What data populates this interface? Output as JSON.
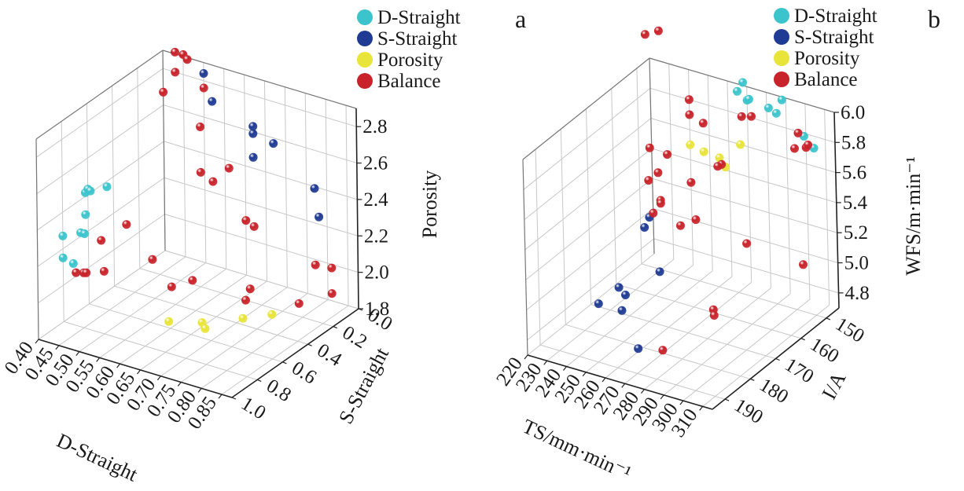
{
  "chart_data": [
    {
      "type": "scatter",
      "panel_label": "a",
      "legend": [
        "D-Straight",
        "S-Straight",
        "Porosity",
        "Balance"
      ],
      "legend_placement": "top-right",
      "axes": {
        "x": {
          "label": "D-Straight",
          "ticks": [
            "0.40",
            "0.45",
            "0.50",
            "0.55",
            "0.60",
            "0.65",
            "0.70",
            "0.75",
            "0.80",
            "0.85"
          ],
          "range": [
            0.4,
            0.875
          ]
        },
        "y": {
          "label": "S-Straight",
          "ticks": [
            "0.0",
            "0.2",
            "0.4",
            "0.6",
            "0.8",
            "1.0"
          ],
          "range": [
            0.0,
            1.0
          ]
        },
        "z": {
          "label": "Porosity",
          "ticks": [
            "1.8",
            "2.0",
            "2.2",
            "2.4",
            "2.6",
            "2.8"
          ],
          "range": [
            1.8,
            2.9
          ]
        }
      },
      "grid": true,
      "series": [
        {
          "name": "D-Straight",
          "color": "#3cc4cc",
          "points": [
            [
              0.4,
              0.8,
              2.27
            ],
            [
              0.4,
              0.8,
              2.15
            ],
            [
              0.4,
              0.62,
              2.3
            ],
            [
              0.4,
              0.62,
              2.42
            ],
            [
              0.4,
              0.6,
              2.43
            ],
            [
              0.4,
              0.58,
              2.41
            ],
            [
              0.4,
              0.45,
              2.37
            ],
            [
              0.4,
              0.66,
              2.22
            ],
            [
              0.4,
              0.63,
              2.2
            ],
            [
              0.4,
              0.72,
              2.08
            ]
          ]
        },
        {
          "name": "S-Straight",
          "color": "#1f3b93",
          "points": [
            [
              0.5,
              0.0,
              2.84
            ],
            [
              0.52,
              0.0,
              2.7
            ],
            [
              0.62,
              0.0,
              2.59
            ],
            [
              0.62,
              0.0,
              2.63
            ],
            [
              0.67,
              0.0,
              2.57
            ],
            [
              0.62,
              0.0,
              2.46
            ],
            [
              0.77,
              0.0,
              2.39
            ],
            [
              0.78,
              0.0,
              2.24
            ]
          ]
        },
        {
          "name": "Porosity",
          "color": "#e8e43a",
          "points": [
            [
              0.58,
              0.55,
              1.8
            ],
            [
              0.64,
              0.48,
              1.8
            ],
            [
              0.66,
              0.52,
              1.8
            ],
            [
              0.7,
              0.35,
              1.8
            ],
            [
              0.74,
              0.25,
              1.8
            ]
          ]
        },
        {
          "name": "Balance",
          "color": "#c8232a",
          "points": [
            [
              0.43,
              0.0,
              2.91
            ],
            [
              0.45,
              0.0,
              2.91
            ],
            [
              0.46,
              0.0,
              2.89
            ],
            [
              0.43,
              0.0,
              2.8
            ],
            [
              0.5,
              0.0,
              2.76
            ],
            [
              0.4,
              0.0,
              2.67
            ],
            [
              0.49,
              0.0,
              2.54
            ],
            [
              0.56,
              0.0,
              2.36
            ],
            [
              0.49,
              0.0,
              2.29
            ],
            [
              0.52,
              0.0,
              2.26
            ],
            [
              0.6,
              0.0,
              2.1
            ],
            [
              0.62,
              0.0,
              2.08
            ],
            [
              0.77,
              0.0,
              1.97
            ],
            [
              0.81,
              0.0,
              1.98
            ],
            [
              0.81,
              0.0,
              1.84
            ],
            [
              0.76,
              0.1,
              1.8
            ],
            [
              0.64,
              0.1,
              1.8
            ],
            [
              0.52,
              0.17,
              1.8
            ],
            [
              0.5,
              0.27,
              1.8
            ],
            [
              0.66,
              0.2,
              1.8
            ],
            [
              0.4,
              0.1,
              1.8
            ],
            [
              0.4,
              0.5,
              2.1
            ],
            [
              0.4,
              0.3,
              2.09
            ],
            [
              0.4,
              0.7,
              2.02
            ],
            [
              0.4,
              0.64,
              1.99
            ],
            [
              0.4,
              0.62,
              1.98
            ],
            [
              0.4,
              0.48,
              1.92
            ]
          ]
        }
      ]
    },
    {
      "type": "scatter",
      "panel_label": "b",
      "legend": [
        "D-Straight",
        "S-Straight",
        "Porosity",
        "Balance"
      ],
      "legend_placement": "top-right",
      "axes": {
        "x": {
          "label": "TS/mm·min⁻¹",
          "ticks": [
            "220",
            "230",
            "240",
            "250",
            "260",
            "270",
            "280",
            "290",
            "300",
            "310"
          ],
          "range": [
            220,
            315
          ]
        },
        "y": {
          "label": "I/A",
          "ticks": [
            "150",
            "160",
            "170",
            "180",
            "190"
          ],
          "range": [
            145,
            195
          ]
        },
        "z": {
          "label": "WFS/m·min⁻¹",
          "ticks": [
            "4.8",
            "5.0",
            "5.2",
            "5.4",
            "5.6",
            "5.8",
            "6.0"
          ],
          "range": [
            4.7,
            6.0
          ]
        }
      },
      "grid": true,
      "series": [
        {
          "name": "D-Straight",
          "color": "#3cc4cc",
          "points": [
            [
              265,
              145,
              5.95
            ],
            [
              268,
              145,
              6.02
            ],
            [
              270,
              145,
              5.91
            ],
            [
              271,
              145,
              5.92
            ],
            [
              281,
              145,
              5.9
            ],
            [
              285,
              145,
              5.88
            ],
            [
              288,
              145,
              5.98
            ],
            [
              299,
              145,
              5.78
            ],
            [
              304,
              145,
              5.72
            ]
          ]
        },
        {
          "name": "S-Straight",
          "color": "#1f3b93",
          "points": [
            [
              222,
              148,
              4.99
            ],
            [
              222,
              150,
              4.95
            ],
            [
              232,
              152,
              4.72
            ],
            [
              224,
              162,
              4.72
            ],
            [
              230,
              164,
              4.72
            ],
            [
              224,
              170,
              4.72
            ],
            [
              236,
              170,
              4.72
            ],
            [
              260,
              182,
              4.72
            ]
          ]
        },
        {
          "name": "Porosity",
          "color": "#e8e43a",
          "points": [
            [
              240,
              145,
              5.5
            ],
            [
              247,
              145,
              5.48
            ],
            [
              255,
              145,
              5.47
            ],
            [
              258,
              145,
              5.42
            ],
            [
              266,
              145,
              5.6
            ]
          ]
        },
        {
          "name": "Balance",
          "color": "#c8232a",
          "points": [
            [
              218,
              145,
              6.15
            ],
            [
              225,
              145,
              6.2
            ],
            [
              240,
              145,
              5.8
            ],
            [
              240,
              145,
              5.7
            ],
            [
              247,
              145,
              5.67
            ],
            [
              267,
              145,
              5.79
            ],
            [
              272,
              145,
              5.81
            ],
            [
              296,
              145,
              5.79
            ],
            [
              300,
              145,
              5.71
            ],
            [
              301,
              145,
              5.73
            ],
            [
              294,
              145,
              5.68
            ],
            [
              256,
              145,
              5.43
            ],
            [
              254,
              145,
              5.41
            ],
            [
              219,
              145,
              5.4
            ],
            [
              228,
              145,
              5.39
            ],
            [
              223,
              145,
              5.25
            ],
            [
              240,
              145,
              5.25
            ],
            [
              218,
              145,
              5.18
            ],
            [
              224,
              145,
              5.07
            ],
            [
              224,
              145,
              5.05
            ],
            [
              242,
              145,
              5.01
            ],
            [
              220,
              145,
              4.97
            ],
            [
              234,
              145,
              4.94
            ],
            [
              268,
              145,
              4.95
            ],
            [
              297,
              145,
              4.92
            ],
            [
              270,
              160,
              4.72
            ],
            [
              273,
              162,
              4.72
            ],
            [
              270,
              180,
              4.72
            ]
          ]
        }
      ]
    }
  ]
}
